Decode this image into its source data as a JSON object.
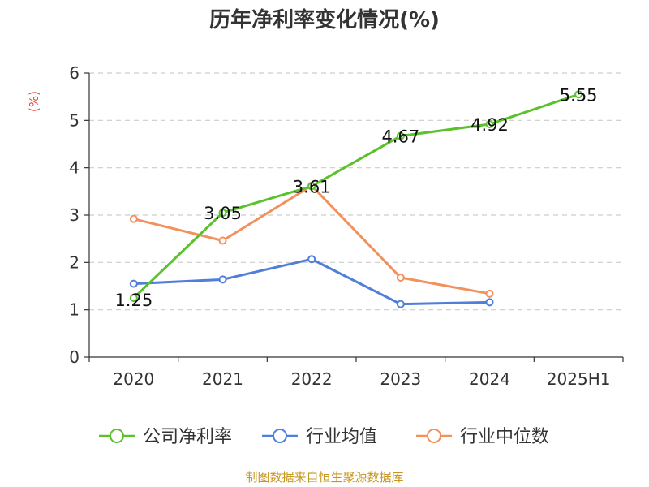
{
  "chart_data": {
    "type": "line",
    "title": "历年净利率变化情况(%)",
    "ylabel": "(%)",
    "categories": [
      "2020",
      "2021",
      "2022",
      "2023",
      "2024",
      "2025H1"
    ],
    "ylim": [
      0,
      6
    ],
    "yticks": [
      0,
      1,
      2,
      3,
      4,
      5,
      6
    ],
    "grid": true,
    "legend_position": "bottom",
    "series": [
      {
        "name": "公司净利率",
        "color": "#5bc12c",
        "values": [
          1.25,
          3.05,
          3.61,
          4.67,
          4.92,
          5.55
        ],
        "labels": [
          "1.25",
          "3.05",
          "3.61",
          "4.67",
          "4.92",
          "5.55"
        ],
        "show_labels": true
      },
      {
        "name": "行业均值",
        "color": "#4f7fd9",
        "values": [
          1.55,
          1.64,
          2.07,
          1.12,
          1.16,
          null
        ],
        "show_labels": false
      },
      {
        "name": "行业中位数",
        "color": "#f2915c",
        "values": [
          2.92,
          2.46,
          3.62,
          1.68,
          1.34,
          null
        ],
        "show_labels": false
      }
    ],
    "source": "制图数据来自恒生聚源数据库"
  }
}
